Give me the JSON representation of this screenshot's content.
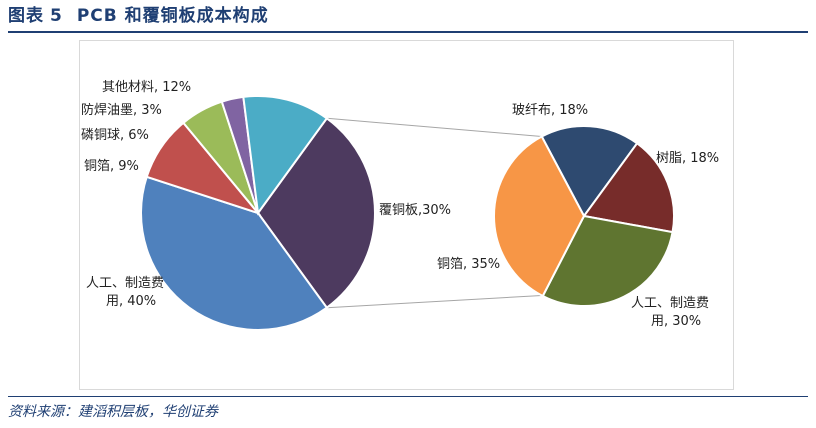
{
  "figure": {
    "label": "图表",
    "number": "5",
    "title": "PCB 和覆铜板成本构成"
  },
  "source": "资料来源：建滔积层板，华创证券",
  "chart_data": [
    {
      "type": "pie",
      "title": "",
      "slices": [
        {
          "name": "覆铜板",
          "value": 30,
          "label": "覆铜板,30%",
          "color": "#4d3a5f"
        },
        {
          "name": "人工、制造费用",
          "value": 40,
          "label_lines": [
            "人工、制造费",
            "用, 40%"
          ],
          "color": "#4f81bd"
        },
        {
          "name": "铜箔",
          "value": 9,
          "label": "铜箔, 9%",
          "color": "#c0504d"
        },
        {
          "name": "磷铜球",
          "value": 6,
          "label": "磷铜球, 6%",
          "color": "#9bbb59"
        },
        {
          "name": "防焊油墨",
          "value": 3,
          "label": "防焊油墨, 3%",
          "color": "#8064a2"
        },
        {
          "name": "其他材料",
          "value": 12,
          "label": "其他材料, 12%",
          "color": "#4bacc6"
        }
      ]
    },
    {
      "type": "pie",
      "title": "",
      "breakdown_of": "覆铜板",
      "slices": [
        {
          "name": "玻纤布",
          "value": 18,
          "label": "玻纤布, 18%",
          "color": "#2e4a70"
        },
        {
          "name": "树脂",
          "value": 18,
          "label": "树脂, 18%",
          "color": "#772c2a"
        },
        {
          "name": "人工、制造费用",
          "value": 30,
          "label_lines": [
            "人工、制造费",
            "用, 30%"
          ],
          "color": "#5f7530"
        },
        {
          "name": "铜箔",
          "value": 35,
          "label": "铜箔, 35%",
          "color": "#f79646"
        }
      ]
    }
  ]
}
